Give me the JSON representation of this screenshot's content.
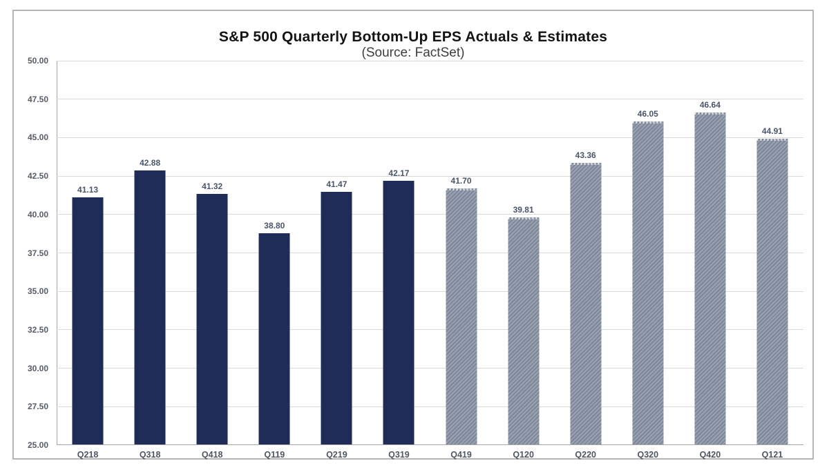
{
  "chart": {
    "title": "S&P 500 Quarterly Bottom-Up EPS Actuals & Estimates",
    "subtitle": "(Source: FactSet)"
  },
  "chart_data": {
    "type": "bar",
    "title": "S&P 500 Quarterly Bottom-Up EPS Actuals & Estimates",
    "subtitle": "(Source: FactSet)",
    "xlabel": "",
    "ylabel": "",
    "ylim": [
      25,
      50
    ],
    "ytick_step": 2.5,
    "ytick_labels": [
      "25.00",
      "27.50",
      "30.00",
      "32.50",
      "35.00",
      "37.50",
      "40.00",
      "42.50",
      "45.00",
      "47.50",
      "50.00"
    ],
    "grid": true,
    "legend_position": "none",
    "categories": [
      "Q218",
      "Q318",
      "Q418",
      "Q119",
      "Q219",
      "Q319",
      "Q419",
      "Q120",
      "Q220",
      "Q320",
      "Q420",
      "Q121"
    ],
    "series": [
      {
        "name": "Actuals",
        "style": "solid",
        "color": "#1e2c57",
        "values": [
          41.13,
          42.88,
          41.32,
          38.8,
          41.47,
          42.17,
          null,
          null,
          null,
          null,
          null,
          null
        ]
      },
      {
        "name": "Estimates",
        "style": "hatched",
        "color": "#8b94a4",
        "values": [
          null,
          null,
          null,
          null,
          null,
          null,
          41.7,
          39.81,
          43.36,
          46.05,
          46.64,
          44.91
        ]
      }
    ],
    "data_labels": [
      "41.13",
      "42.88",
      "41.32",
      "38.80",
      "41.47",
      "42.17",
      "41.70",
      "39.81",
      "43.36",
      "46.05",
      "46.64",
      "44.91"
    ],
    "colors": {
      "actual_bar": "#1e2c57",
      "estimate_bar": "#8b94a4",
      "gridline": "#d9d9d9",
      "axis_line": "#a3a3a3",
      "value_label": "#4a5569"
    }
  }
}
